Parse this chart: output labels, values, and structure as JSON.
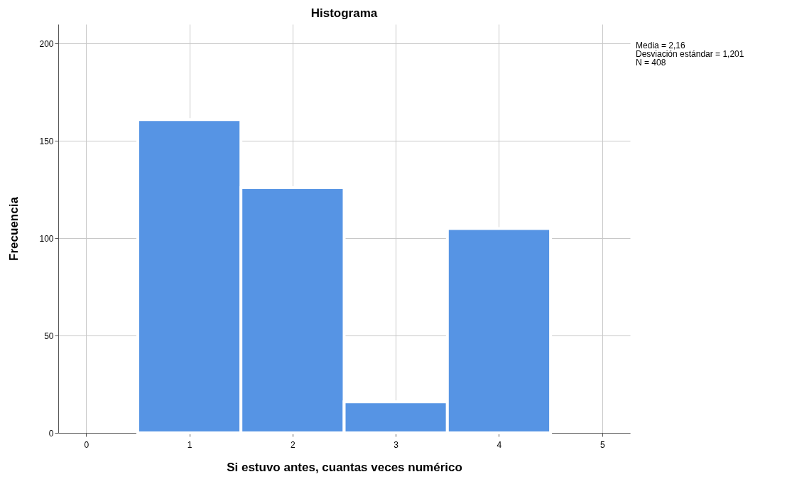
{
  "chart_data": {
    "type": "histogram",
    "title": "Histograma",
    "xlabel": "Si estuvo antes, cuantas veces numérico",
    "ylabel": "Frecuencia",
    "bins": [
      0.5,
      1.5,
      2.5,
      3.5,
      4.5
    ],
    "values": [
      161,
      126,
      16,
      105
    ],
    "color": "#5694e4",
    "xlim": [
      -0.27,
      5.27
    ],
    "xticks": [
      0,
      1,
      2,
      3,
      4,
      5
    ],
    "ylim": [
      0,
      210
    ],
    "yticks": [
      0,
      50,
      100,
      150,
      200
    ],
    "grid": true,
    "annotations": [
      "Media = 2,16",
      "Desviación estándar = 1,201",
      "N = 408"
    ]
  }
}
